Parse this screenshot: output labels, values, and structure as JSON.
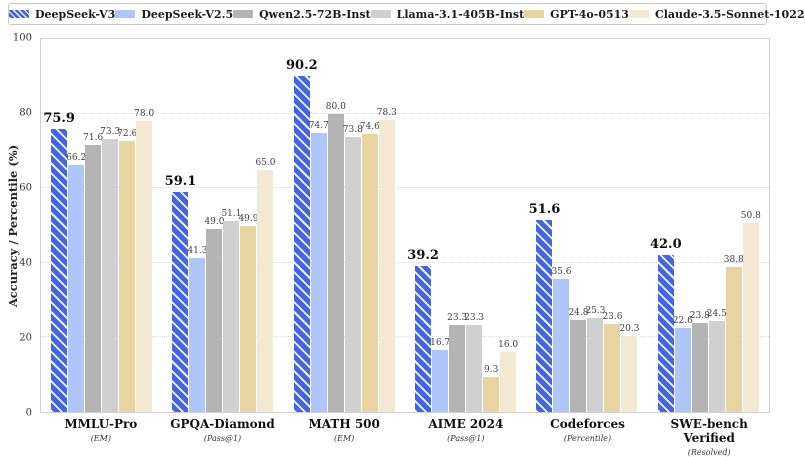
{
  "chart_data": {
    "type": "bar",
    "title": "",
    "ylabel": "Accuracy / Percentile (%)",
    "xlabel": "",
    "ylim": [
      0,
      100
    ],
    "yticks": [
      0,
      20,
      40,
      60,
      80,
      100
    ],
    "grid": "horizontal dotted at yticks",
    "legend_position": "top",
    "categories": [
      "MMLU-Pro",
      "GPQA-Diamond",
      "MATH 500",
      "AIME 2024",
      "Codeforces",
      "SWE-bench Verified"
    ],
    "category_metrics": [
      "(EM)",
      "(Pass@1)",
      "(EM)",
      "(Pass@1)",
      "(Percentile)",
      "(Resolved)"
    ],
    "series": [
      {
        "name": "DeepSeek-V3",
        "color": "#4365e2",
        "hatch": "/",
        "emphasis": true,
        "values": [
          75.9,
          59.1,
          90.2,
          39.2,
          51.6,
          42.0
        ]
      },
      {
        "name": "DeepSeek-V2.5",
        "color": "#aec6fa",
        "hatch": "",
        "emphasis": false,
        "values": [
          66.2,
          41.3,
          74.7,
          16.7,
          35.6,
          22.6
        ]
      },
      {
        "name": "Qwen2.5-72B-Inst",
        "color": "#b4b4b4",
        "hatch": "",
        "emphasis": false,
        "values": [
          71.6,
          49.0,
          80.0,
          23.3,
          24.8,
          23.8
        ]
      },
      {
        "name": "Llama-3.1-405B-Inst",
        "color": "#d0d0d0",
        "hatch": "",
        "emphasis": false,
        "values": [
          73.3,
          51.1,
          73.8,
          23.3,
          25.3,
          24.5
        ]
      },
      {
        "name": "GPT-4o-0513",
        "color": "#e8d4a0",
        "hatch": "",
        "emphasis": false,
        "values": [
          72.6,
          49.9,
          74.6,
          9.3,
          23.6,
          38.8
        ]
      },
      {
        "name": "Claude-3.5-Sonnet-1022",
        "color": "#f3e9d2",
        "hatch": "",
        "emphasis": false,
        "values": [
          78.0,
          65.0,
          78.3,
          16.0,
          20.3,
          50.8
        ]
      }
    ]
  }
}
